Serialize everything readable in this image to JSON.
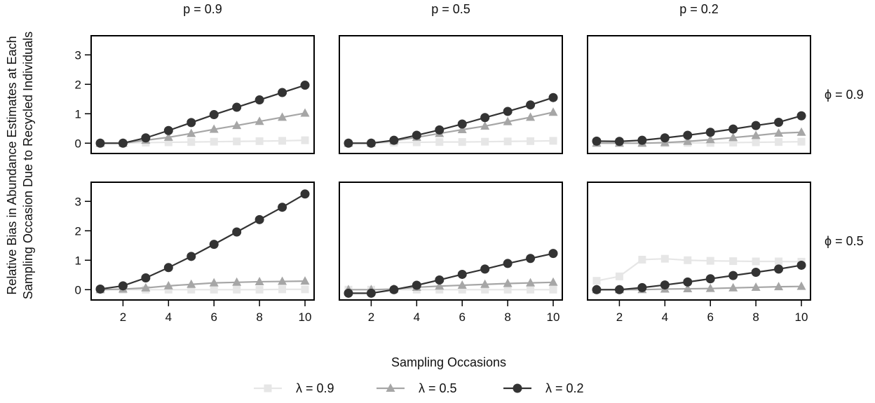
{
  "chart_data": {
    "type": "line",
    "layout": "faceted-grid",
    "ylabel_line1": "Relative Bias in Abundance Estimates at Each",
    "ylabel_line2": "Sampling Occasion Due to Recycled Individuals",
    "xlabel": "Sampling Occasions",
    "columns": [
      "p = 0.9",
      "p = 0.5",
      "p = 0.2"
    ],
    "rows": [
      "ϕ = 0.9",
      "ϕ = 0.5"
    ],
    "x": [
      1,
      2,
      3,
      4,
      5,
      6,
      7,
      8,
      9,
      10
    ],
    "x_ticks": [
      2,
      4,
      6,
      8,
      10
    ],
    "y_ticks": [
      0,
      1,
      2,
      3
    ],
    "ylim": [
      -0.35,
      3.65
    ],
    "xlim": [
      0.6,
      10.4
    ],
    "grid": false,
    "legend_position": "bottom",
    "series_styles": [
      {
        "name": "λ = 0.9",
        "color": "#e6e6e6",
        "marker": "square"
      },
      {
        "name": "λ = 0.5",
        "color": "#a6a6a6",
        "marker": "triangle"
      },
      {
        "name": "λ = 0.2",
        "color": "#333333",
        "marker": "circle"
      }
    ],
    "panels": [
      {
        "row": 0,
        "col": 0,
        "series": [
          [
            0,
            0,
            0.02,
            0.03,
            0.04,
            0.05,
            0.06,
            0.07,
            0.08,
            0.1
          ],
          [
            0,
            0,
            0.1,
            0.2,
            0.33,
            0.47,
            0.6,
            0.74,
            0.88,
            1.02
          ],
          [
            0,
            0,
            0.18,
            0.43,
            0.7,
            0.97,
            1.22,
            1.47,
            1.72,
            1.97
          ]
        ]
      },
      {
        "row": 0,
        "col": 1,
        "series": [
          [
            0,
            0,
            0.02,
            0.03,
            0.04,
            0.04,
            0.05,
            0.06,
            0.07,
            0.08
          ],
          [
            0,
            0,
            0.08,
            0.2,
            0.33,
            0.46,
            0.58,
            0.73,
            0.88,
            1.05
          ],
          [
            0,
            0,
            0.1,
            0.27,
            0.45,
            0.65,
            0.87,
            1.08,
            1.3,
            1.55
          ]
        ]
      },
      {
        "row": 0,
        "col": 2,
        "series": [
          [
            0,
            0,
            0,
            0,
            0.01,
            0.01,
            0.02,
            0.03,
            0.04,
            0.05
          ],
          [
            0,
            0,
            0,
            0.02,
            0.06,
            0.12,
            0.19,
            0.26,
            0.34,
            0.37
          ],
          [
            0.07,
            0.06,
            0.1,
            0.18,
            0.27,
            0.37,
            0.48,
            0.6,
            0.71,
            0.93
          ]
        ]
      },
      {
        "row": 1,
        "col": 0,
        "series": [
          [
            0,
            0,
            0,
            0,
            0,
            0,
            0,
            0,
            0.01,
            0.01
          ],
          [
            0,
            0.02,
            0.06,
            0.13,
            0.18,
            0.23,
            0.25,
            0.27,
            0.28,
            0.29
          ],
          [
            0.02,
            0.13,
            0.4,
            0.75,
            1.13,
            1.54,
            1.96,
            2.38,
            2.8,
            3.25
          ]
        ]
      },
      {
        "row": 1,
        "col": 1,
        "series": [
          [
            0,
            0,
            0,
            0,
            0,
            0,
            0,
            0,
            0,
            0
          ],
          [
            0,
            0,
            0.02,
            0.08,
            0.12,
            0.15,
            0.18,
            0.21,
            0.23,
            0.25
          ],
          [
            -0.12,
            -0.12,
            0,
            0.15,
            0.33,
            0.52,
            0.7,
            0.89,
            1.06,
            1.23
          ]
        ]
      },
      {
        "row": 1,
        "col": 2,
        "series": [
          [
            0.3,
            0.45,
            1.02,
            1.05,
            1,
            0.98,
            0.97,
            0.96,
            0.96,
            0.95
          ],
          [
            0,
            0,
            0,
            0.02,
            0.03,
            0.04,
            0.06,
            0.08,
            0.1,
            0.11
          ],
          [
            0,
            0,
            0.07,
            0.16,
            0.26,
            0.37,
            0.48,
            0.59,
            0.7,
            0.83
          ]
        ]
      }
    ]
  }
}
